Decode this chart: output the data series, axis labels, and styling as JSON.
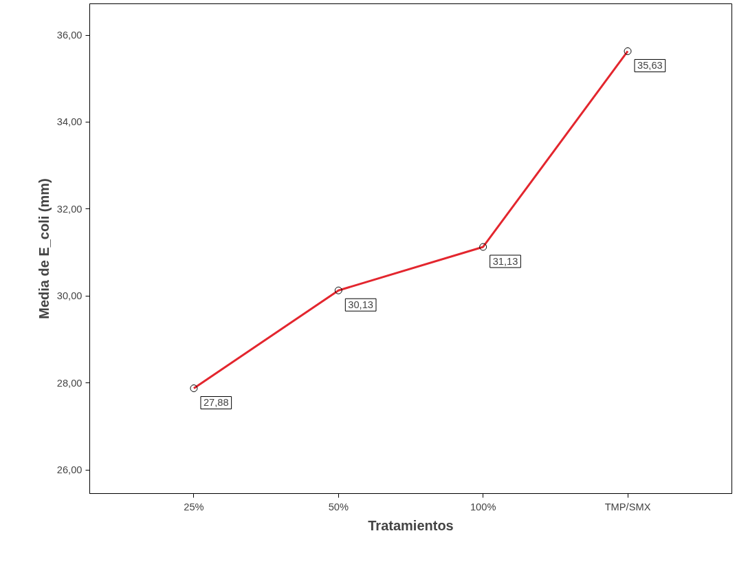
{
  "chart_data": {
    "type": "line",
    "xlabel": "Tratamientos",
    "ylabel": "Media de E_coli (mm)",
    "categories": [
      "25%",
      "50%",
      "100%",
      "TMP/SMX"
    ],
    "series": [
      {
        "color": "#e3262e",
        "values": [
          27.88,
          30.13,
          31.13,
          35.63
        ],
        "value_labels": [
          "27,88",
          "30,13",
          "31,13",
          "35,63"
        ]
      }
    ],
    "ylim": [
      25.46,
      36.72
    ],
    "yticks": [
      {
        "value": 26,
        "label": "26,00"
      },
      {
        "value": 28,
        "label": "28,00"
      },
      {
        "value": 30,
        "label": "30,00"
      },
      {
        "value": 32,
        "label": "32,00"
      },
      {
        "value": 34,
        "label": "34,00"
      },
      {
        "value": 36,
        "label": "36,00"
      }
    ],
    "marker": "circle",
    "line_style": "solid",
    "grid": false
  }
}
